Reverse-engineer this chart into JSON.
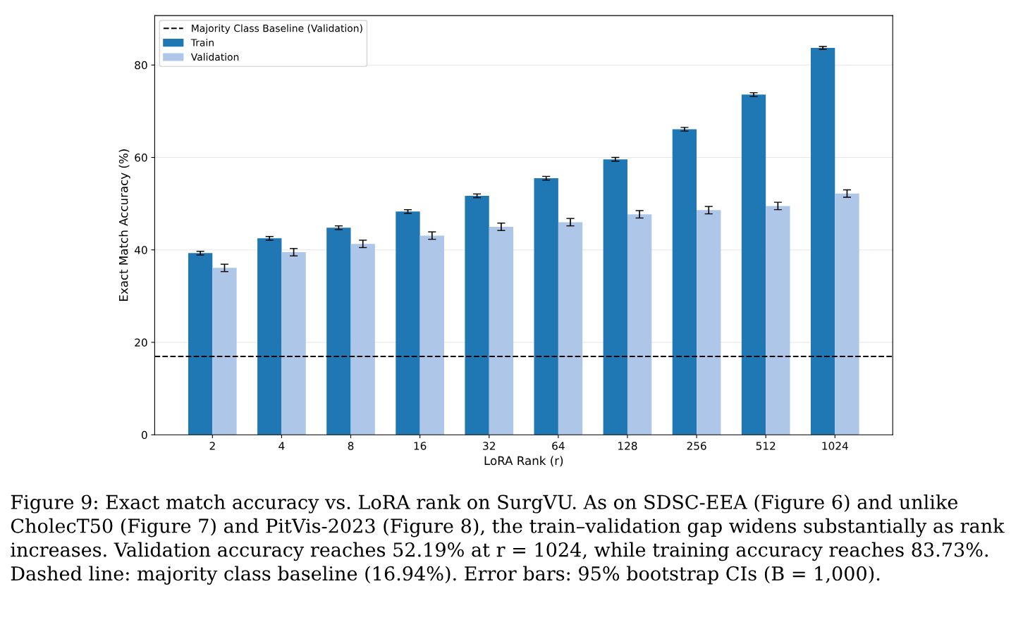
{
  "chart_data": {
    "type": "bar",
    "xlabel": "LoRA Rank (r)",
    "ylabel": "Exact Match Accuracy (%)",
    "categories": [
      "2",
      "4",
      "8",
      "16",
      "32",
      "64",
      "128",
      "256",
      "512",
      "1024"
    ],
    "series": [
      {
        "name": "Train",
        "color": "#1f77b4",
        "values": [
          39.3,
          42.5,
          44.8,
          48.3,
          51.7,
          55.5,
          59.6,
          66.1,
          73.6,
          83.7
        ],
        "errors": [
          0.4,
          0.4,
          0.4,
          0.4,
          0.4,
          0.4,
          0.4,
          0.4,
          0.4,
          0.3
        ]
      },
      {
        "name": "Validation",
        "color": "#aec7e8",
        "values": [
          36.1,
          39.5,
          41.3,
          43.1,
          45.0,
          46.0,
          47.7,
          48.6,
          49.5,
          52.2
        ],
        "errors": [
          0.8,
          0.8,
          0.8,
          0.8,
          0.8,
          0.8,
          0.8,
          0.8,
          0.8,
          0.8
        ]
      }
    ],
    "ylim": [
      0,
      90.7
    ],
    "yticks": [
      0,
      20,
      40,
      60,
      80
    ],
    "grid": "y",
    "legend": "top left",
    "ref_lines": [
      {
        "axis": "y",
        "value": 16.94,
        "label": "Majority Class Baseline (Validation)",
        "color": "#000000",
        "line_style": "dashed"
      }
    ],
    "annotations": [
      "Figure 9: Exact match accuracy vs. LoRA rank on SurgVU. As on SDSC-EEA (Figure 6) and unlike CholecT50 (Figure 7) and PitVis-2023 (Figure 8), the train–validation gap widens substantially as rank increases. Validation accuracy reaches 52.19% at r = 1024, while training accuracy reaches 83.73%. Dashed line: majority class baseline (16.94%). Error bars: 95% bootstrap CIs (B = 1,000)."
    ]
  }
}
